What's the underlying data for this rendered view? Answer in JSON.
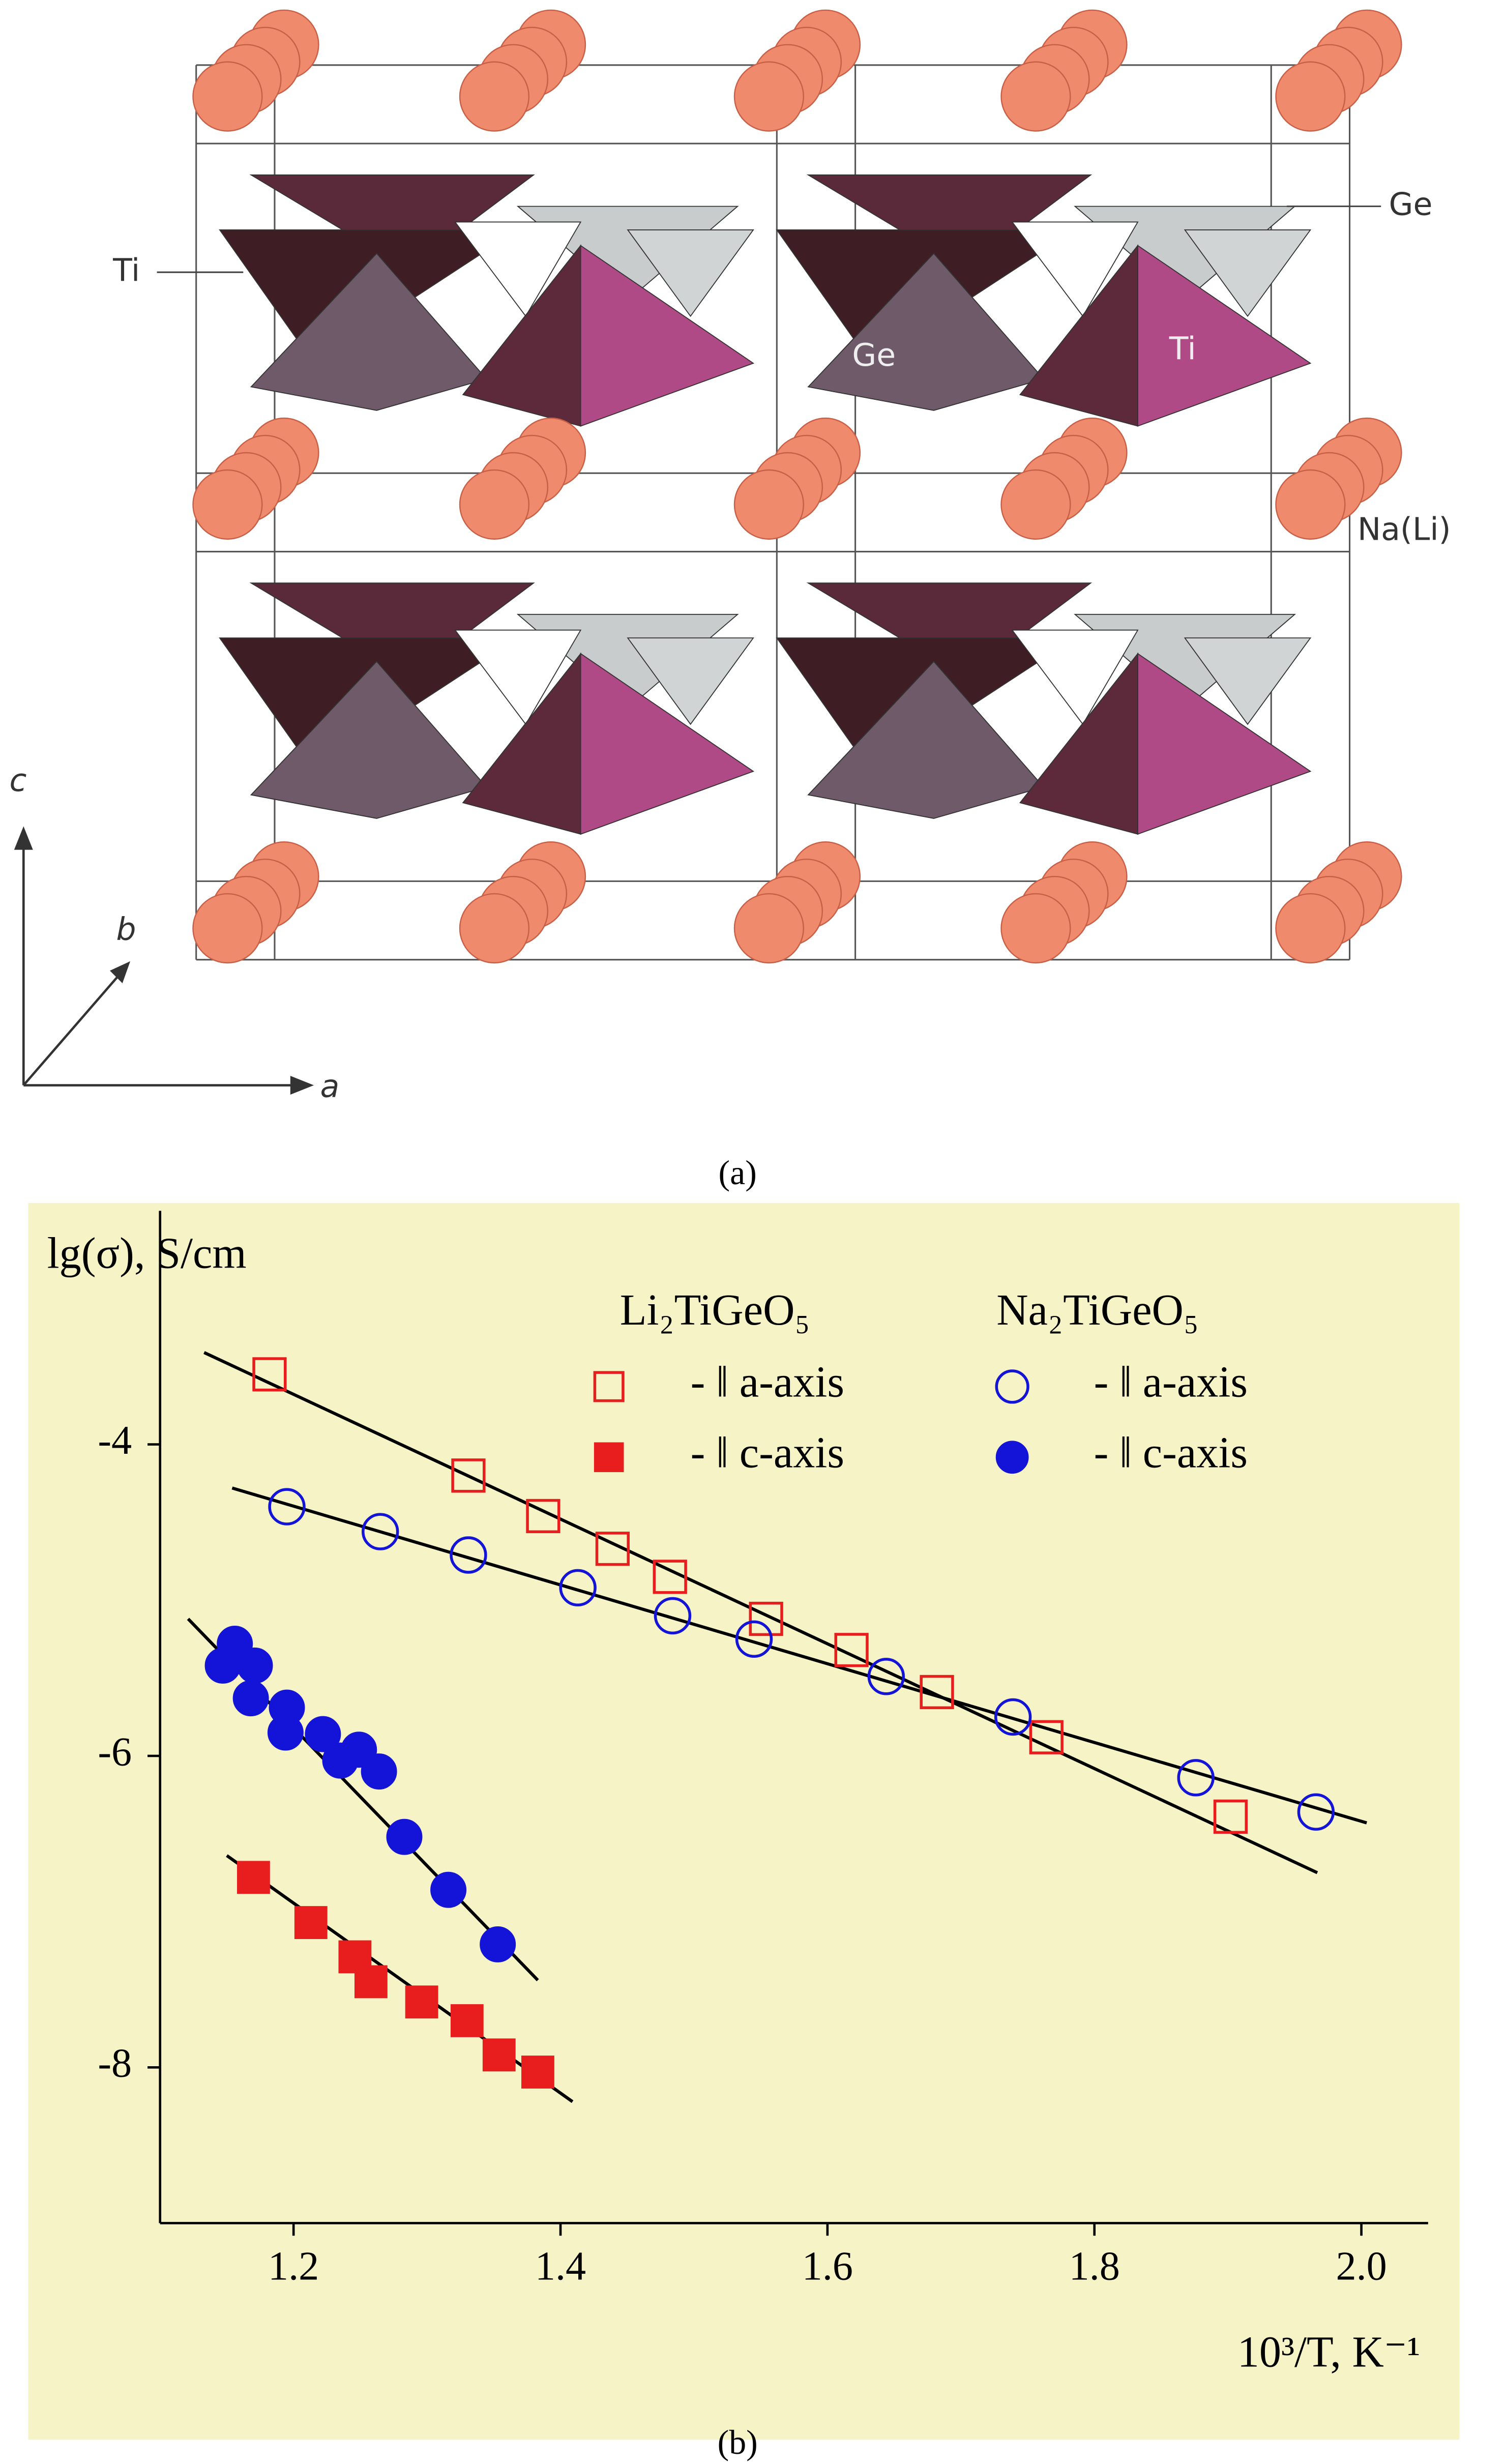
{
  "structure": {
    "labels": [
      "Ti",
      "Ge",
      "Ge",
      "Ti",
      "Na(Li)",
      "c",
      "b",
      "a"
    ],
    "caption": "(a)"
  },
  "chart_data": {
    "type": "scatter",
    "caption": "(b)",
    "y_label": "lg(σ), S/cm",
    "x_label": "10³/T, K⁻¹",
    "xlim": [
      1.1,
      2.05
    ],
    "xticks": [
      1.2,
      1.4,
      1.6,
      1.8,
      {
        "value": 2,
        "label": "2.0"
      }
    ],
    "ylim": [
      -9,
      -2.5
    ],
    "yticks": [
      -4,
      -6,
      -8
    ],
    "legend_groups": [
      "Li₂TiGeO₅",
      "Na₂TiGeO₅"
    ],
    "series": [
      {
        "name": "- ‖ a-axis",
        "color": "#e81e1e",
        "marker": "square",
        "filled": false,
        "x": [
          1.182,
          1.331,
          1.387,
          1.439,
          1.482,
          1.554,
          1.618,
          1.682,
          1.764,
          1.902
        ],
        "values": [
          -3.55,
          -4.2,
          -4.46,
          -4.67,
          -4.85,
          -5.12,
          -5.32,
          -5.59,
          -5.88,
          -6.39
        ],
        "fit": {
          "x": [
            1.133,
            1.967
          ],
          "y": [
            -3.41,
            -6.75
          ]
        }
      },
      {
        "name": "- ‖ c-axis",
        "color": "#e81e1e",
        "marker": "square",
        "filled": true,
        "x": [
          1.17,
          1.213,
          1.246,
          1.258,
          1.296,
          1.33,
          1.354,
          1.383
        ],
        "values": [
          -6.78,
          -7.07,
          -7.29,
          -7.45,
          -7.58,
          -7.7,
          -7.92,
          -8.03
        ],
        "fit": {
          "x": [
            1.15,
            1.409
          ],
          "y": [
            -6.64,
            -8.22
          ]
        }
      },
      {
        "name": "- ‖ a-axis",
        "color": "#1414d8",
        "marker": "circle",
        "filled": false,
        "x": [
          1.195,
          1.265,
          1.331,
          1.413,
          1.484,
          1.545,
          1.644,
          1.739,
          1.876,
          1.966
        ],
        "values": [
          -4.4,
          -4.56,
          -4.71,
          -4.92,
          -5.1,
          -5.25,
          -5.49,
          -5.75,
          -6.14,
          -6.36
        ],
        "fit": {
          "x": [
            1.154,
            2.004
          ],
          "y": [
            -4.28,
            -6.43
          ]
        }
      },
      {
        "name": "- ‖ c-axis",
        "color": "#1414d8",
        "marker": "circle",
        "filled": true,
        "x": [
          1.156,
          1.147,
          1.171,
          1.168,
          1.195,
          1.194,
          1.222,
          1.235,
          1.249,
          1.264,
          1.283,
          1.316,
          1.353
        ],
        "values": [
          -5.28,
          -5.42,
          -5.42,
          -5.63,
          -5.69,
          -5.85,
          -5.86,
          -6.03,
          -5.96,
          -6.1,
          -6.52,
          -6.86,
          -7.21
        ],
        "fit": {
          "x": [
            1.121,
            1.383
          ],
          "y": [
            -5.12,
            -7.44
          ]
        }
      }
    ]
  }
}
